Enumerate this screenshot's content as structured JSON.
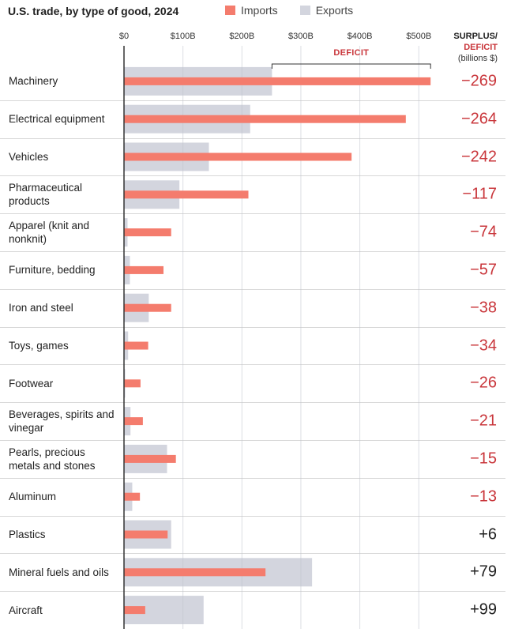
{
  "chart_data": {
    "type": "bar",
    "title": "U.S. trade, by type of good, 2024",
    "legend": [
      {
        "name": "Imports",
        "color": "#f47c6d"
      },
      {
        "name": "Exports",
        "color": "#d3d5de"
      }
    ],
    "x_ticks": [
      "$0",
      "$100B",
      "$200B",
      "$300B",
      "$400B",
      "$500B"
    ],
    "x_tick_values": [
      0,
      100,
      200,
      300,
      400,
      500
    ],
    "xlim": [
      0,
      520
    ],
    "deficit_label": "DEFICIT",
    "column_header": {
      "line1": "SURPLUS/",
      "line2": "DEFICIT",
      "line3": "(billions $)"
    },
    "colors": {
      "imports": "#f47c6d",
      "exports": "#d3d5de",
      "deficit": "#c9363b",
      "surplus": "#222222"
    },
    "categories": [
      {
        "label": "Machinery",
        "imports": 520,
        "exports": 251,
        "balance": "−269"
      },
      {
        "label": "Electrical equipment",
        "imports": 478,
        "exports": 214,
        "balance": "−264"
      },
      {
        "label": "Vehicles",
        "imports": 386,
        "exports": 144,
        "balance": "−242"
      },
      {
        "label": "Pharmaceutical products",
        "imports": 211,
        "exports": 94,
        "balance": "−117"
      },
      {
        "label": "Apparel (knit and nonknit)",
        "imports": 80,
        "exports": 6,
        "balance": "−74"
      },
      {
        "label": "Furniture, bedding",
        "imports": 67,
        "exports": 10,
        "balance": "−57"
      },
      {
        "label": "Iron and steel",
        "imports": 80,
        "exports": 42,
        "balance": "−38"
      },
      {
        "label": "Toys, games",
        "imports": 41,
        "exports": 7,
        "balance": "−34"
      },
      {
        "label": "Footwear",
        "imports": 28,
        "exports": 2,
        "balance": "−26"
      },
      {
        "label": "Beverages, spirits and vinegar",
        "imports": 32,
        "exports": 11,
        "balance": "−21"
      },
      {
        "label": "Pearls, precious metals and stones",
        "imports": 88,
        "exports": 73,
        "balance": "−15"
      },
      {
        "label": "Aluminum",
        "imports": 27,
        "exports": 14,
        "balance": "−13"
      },
      {
        "label": "Plastics",
        "imports": 74,
        "exports": 80,
        "balance": "+6"
      },
      {
        "label": "Mineral fuels and oils",
        "imports": 240,
        "exports": 319,
        "balance": "+79"
      },
      {
        "label": "Aircraft",
        "imports": 36,
        "exports": 135,
        "balance": "+99"
      }
    ]
  }
}
